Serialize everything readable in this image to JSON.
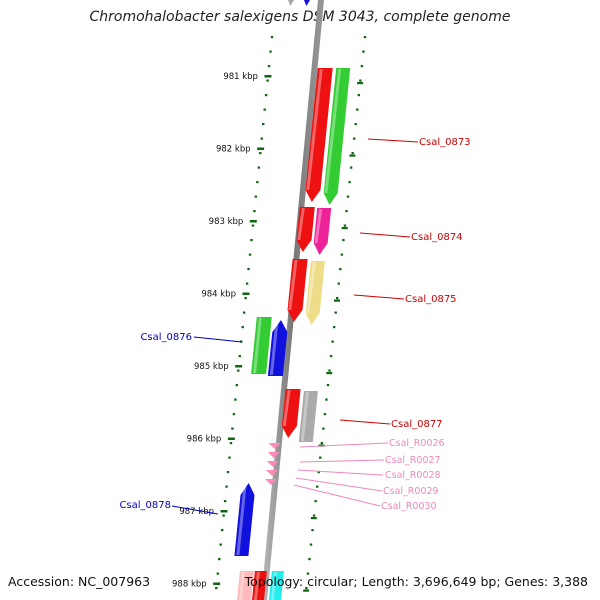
{
  "title": "Chromohalobacter salexigens DSM 3043, complete genome",
  "footer": {
    "accession": "Accession: NC_007963",
    "topology": "Topology: circular; Length: 3,696,649 bp; Genes: 3,388"
  },
  "ticks": [
    {
      "label": "981 kbp",
      "kbp": 981
    },
    {
      "label": "982 kbp",
      "kbp": 982
    },
    {
      "label": "983 kbp",
      "kbp": 983
    },
    {
      "label": "984 kbp",
      "kbp": 984
    },
    {
      "label": "985 kbp",
      "kbp": 985
    },
    {
      "label": "986 kbp",
      "kbp": 986
    },
    {
      "label": "987 kbp",
      "kbp": 987
    },
    {
      "label": "988 kbp",
      "kbp": 988
    }
  ],
  "colors": {
    "red": "#ee1111",
    "green": "#33cc33",
    "blue": "#1111dd",
    "magenta": "#ee2299",
    "khaki": "#eedd88",
    "gray": "#aaaaaa",
    "pink": "#ff88bb",
    "light_pink": "#ffbbbb",
    "cyan": "#22eeee",
    "tick_green": "#116611",
    "label_red": "#cc0000",
    "label_blue": "#0000cc",
    "label_pink": "#ee88bb"
  },
  "labels": [
    {
      "text": "Csal_0873",
      "color": "label_red"
    },
    {
      "text": "Csal_0874",
      "color": "label_red"
    },
    {
      "text": "Csal_0875",
      "color": "label_red"
    },
    {
      "text": "Csal_0876",
      "color": "label_blue"
    },
    {
      "text": "Csal_0877",
      "color": "label_red"
    },
    {
      "text": "Csal_R0026",
      "color": "label_pink"
    },
    {
      "text": "Csal_R0027",
      "color": "label_pink"
    },
    {
      "text": "Csal_R0028",
      "color": "label_pink"
    },
    {
      "text": "Csal_R0029",
      "color": "label_pink"
    },
    {
      "text": "Csal_R0030",
      "color": "label_pink"
    },
    {
      "text": "Csal_0878",
      "color": "label_blue"
    }
  ]
}
